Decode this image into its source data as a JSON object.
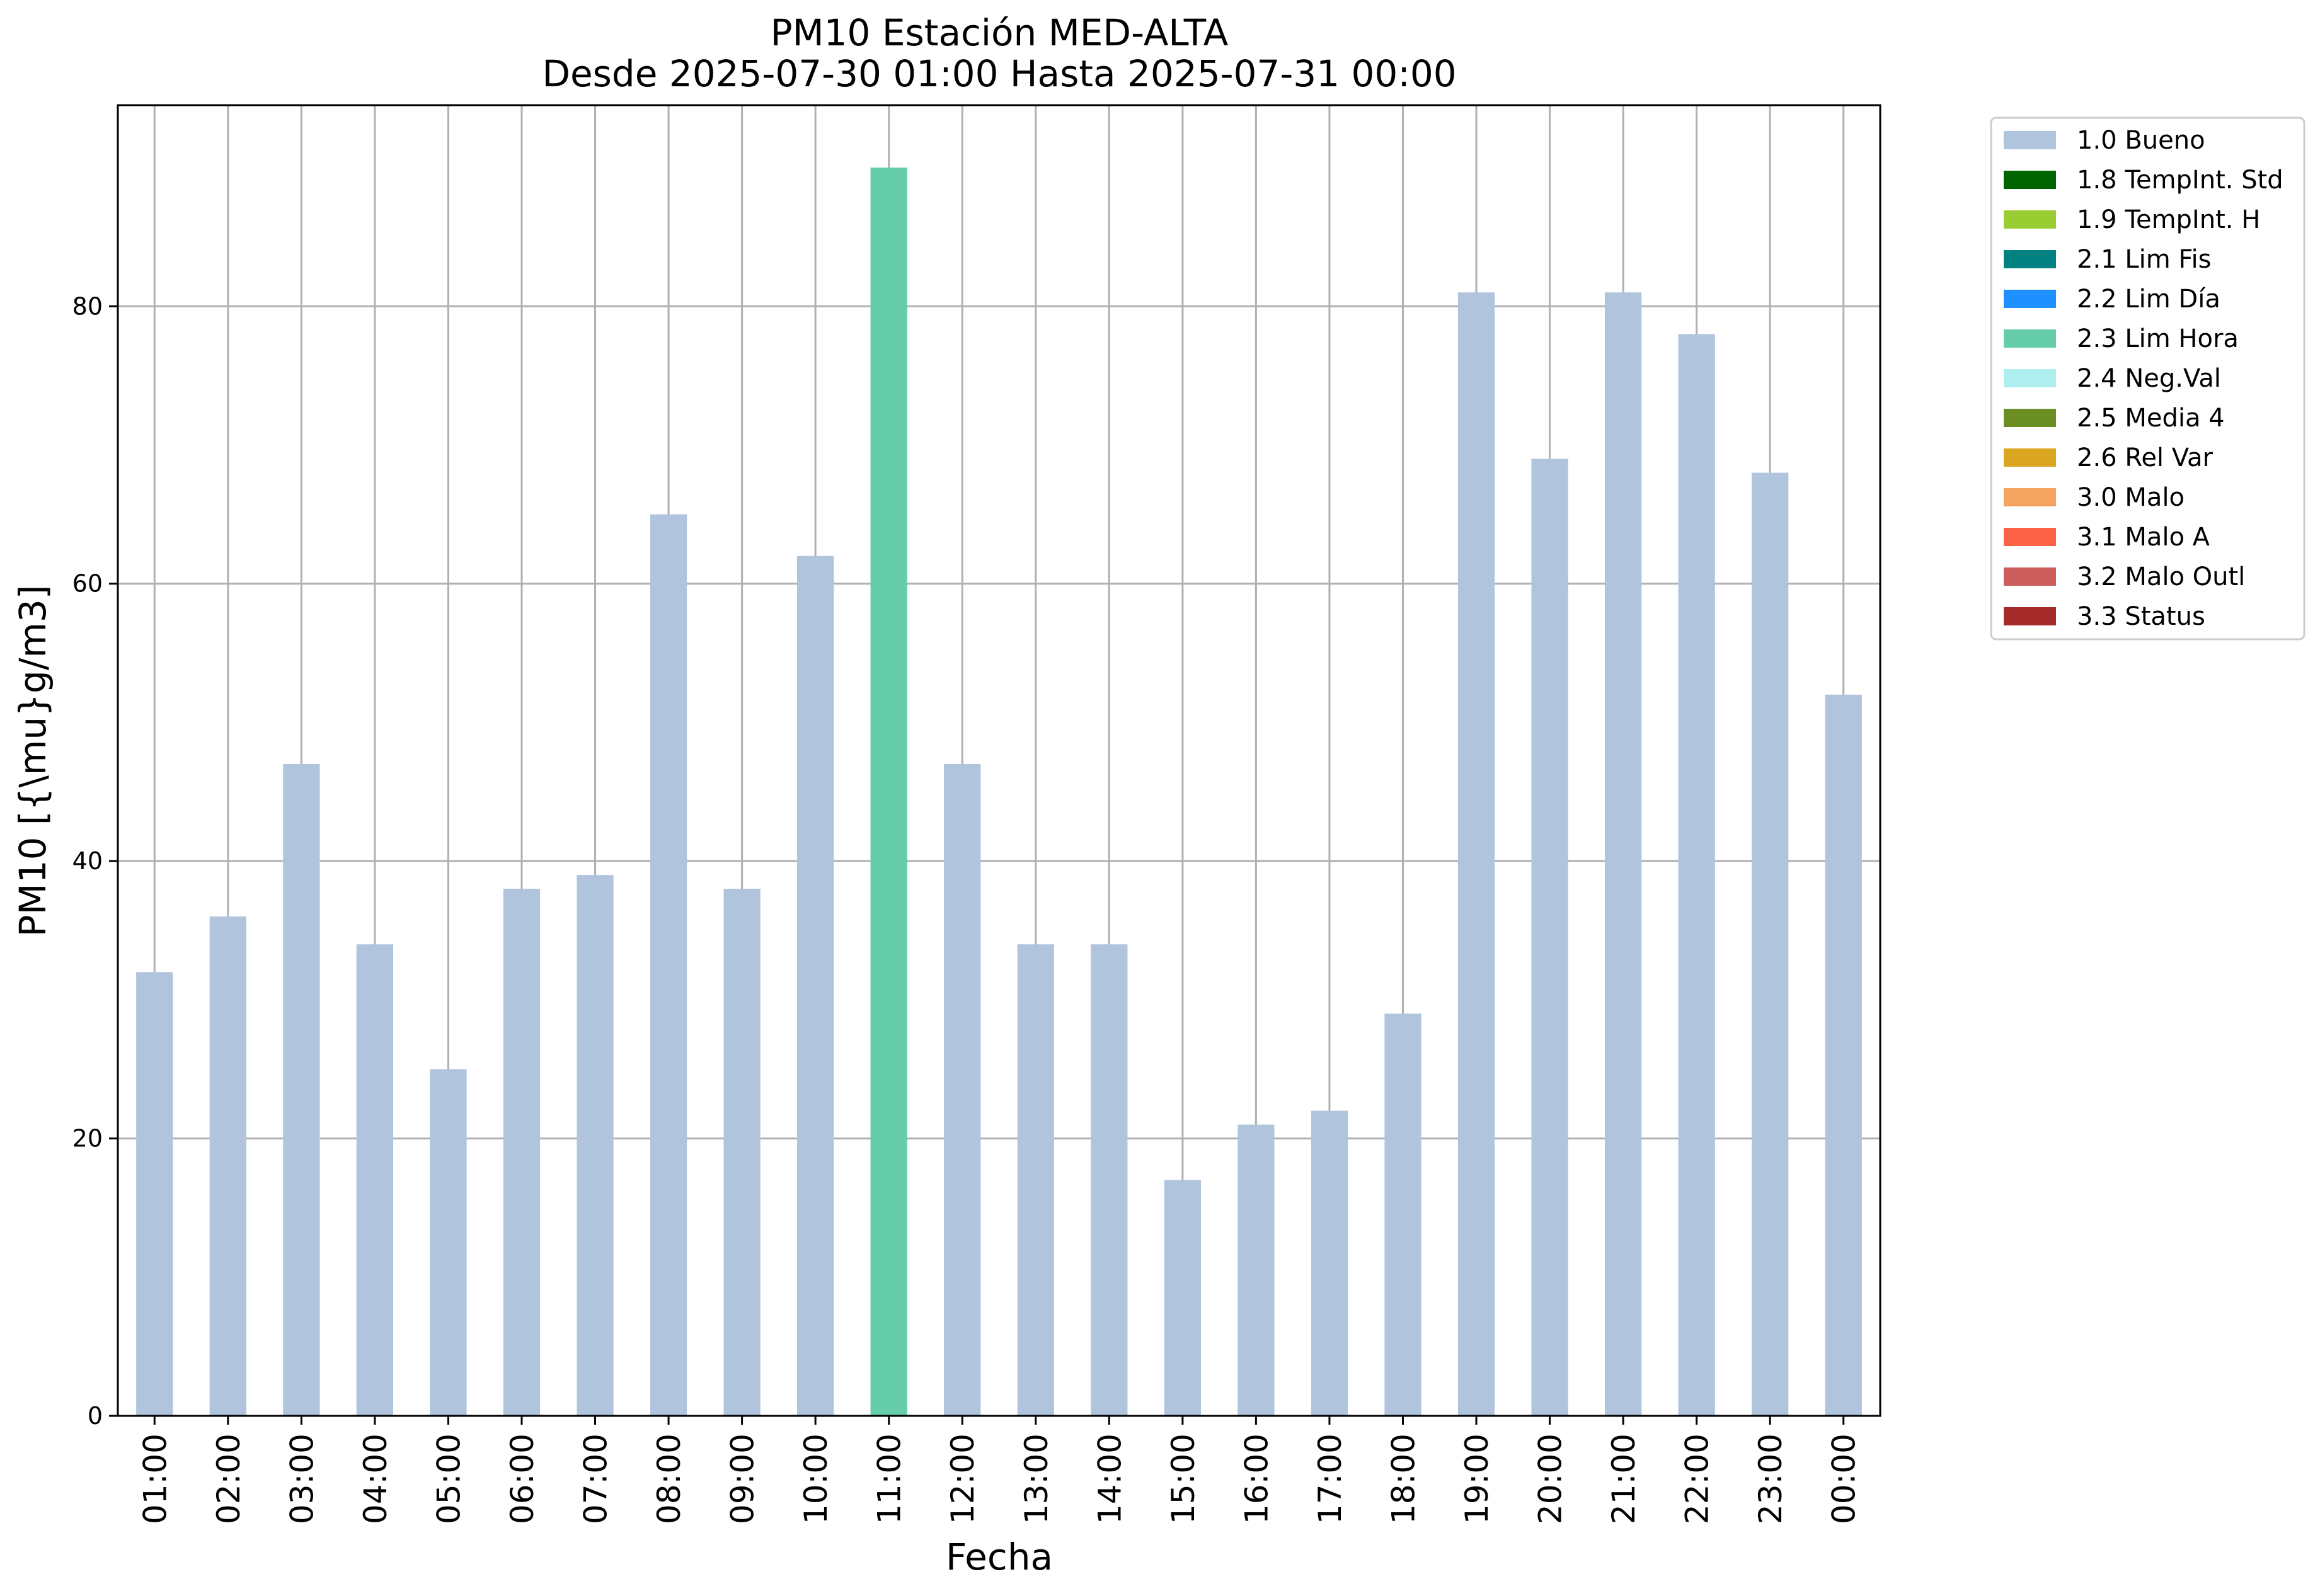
{
  "chart_data": {
    "type": "bar",
    "title": "PM10 Estación MED-ALTA",
    "subtitle": "Desde 2025-07-30 01:00 Hasta 2025-07-31 00:00",
    "xlabel": "Fecha",
    "ylabel": "PM10 [{\\mu}g/m3]",
    "ylim": [
      0,
      94.5
    ],
    "yticks": [
      0,
      20,
      40,
      60,
      80
    ],
    "grid": true,
    "legend_position": "outside-top-right",
    "categories": [
      "01:00",
      "02:00",
      "03:00",
      "04:00",
      "05:00",
      "06:00",
      "07:00",
      "08:00",
      "09:00",
      "10:00",
      "11:00",
      "12:00",
      "13:00",
      "14:00",
      "15:00",
      "16:00",
      "17:00",
      "18:00",
      "19:00",
      "20:00",
      "21:00",
      "22:00",
      "23:00",
      "00:00"
    ],
    "values": [
      32,
      36,
      47,
      34,
      25,
      38,
      39,
      65,
      38,
      62,
      90,
      47,
      34,
      34,
      17,
      21,
      22,
      29,
      81,
      69,
      81,
      78,
      68,
      52
    ],
    "flags": [
      "1.0 Bueno",
      "1.0 Bueno",
      "1.0 Bueno",
      "1.0 Bueno",
      "1.0 Bueno",
      "1.0 Bueno",
      "1.0 Bueno",
      "1.0 Bueno",
      "1.0 Bueno",
      "1.0 Bueno",
      "2.3 Lim Hora",
      "1.0 Bueno",
      "1.0 Bueno",
      "1.0 Bueno",
      "1.0 Bueno",
      "1.0 Bueno",
      "1.0 Bueno",
      "1.0 Bueno",
      "1.0 Bueno",
      "1.0 Bueno",
      "1.0 Bueno",
      "1.0 Bueno",
      "1.0 Bueno",
      "1.0 Bueno"
    ],
    "legend": [
      {
        "label": "1.0 Bueno",
        "color": "#b0c4de"
      },
      {
        "label": "1.8 TempInt. Std",
        "color": "#006400"
      },
      {
        "label": "1.9 TempInt. H",
        "color": "#9acd32"
      },
      {
        "label": "2.1 Lim Fis",
        "color": "#008080"
      },
      {
        "label": "2.2 Lim Día",
        "color": "#1e90ff"
      },
      {
        "label": "2.3 Lim Hora",
        "color": "#66cdaa"
      },
      {
        "label": "2.4 Neg.Val",
        "color": "#afeeee"
      },
      {
        "label": "2.5 Media 4",
        "color": "#6b8e23"
      },
      {
        "label": "2.6 Rel Var",
        "color": "#daa520"
      },
      {
        "label": "3.0 Malo",
        "color": "#f4a460"
      },
      {
        "label": "3.1 Malo A",
        "color": "#ff6347"
      },
      {
        "label": "3.2 Malo Outl",
        "color": "#cd5c5c"
      },
      {
        "label": "3.3 Status",
        "color": "#a52a2a"
      }
    ]
  }
}
